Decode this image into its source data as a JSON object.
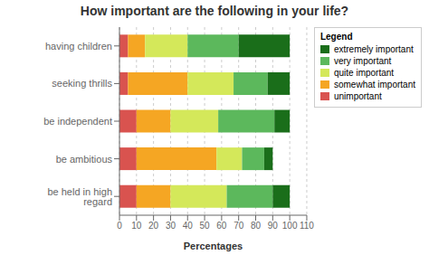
{
  "chart_data": {
    "type": "bar",
    "orientation": "horizontal",
    "stacked": true,
    "title": "How important are the following in your life?",
    "xlabel": "Percentages",
    "categories": [
      "having children",
      "seeking thrills",
      "be independent",
      "be ambitious",
      "be held in high regard"
    ],
    "series": [
      {
        "name": "extremely important",
        "color": "#1a6e1a",
        "values": [
          30,
          13,
          9,
          5,
          10
        ]
      },
      {
        "name": "very important",
        "color": "#5cb85c",
        "values": [
          30,
          20,
          33,
          13,
          27
        ]
      },
      {
        "name": "quite important",
        "color": "#d4e85a",
        "values": [
          25,
          27,
          28,
          15,
          33
        ]
      },
      {
        "name": "somewhat important",
        "color": "#f5a623",
        "values": [
          10,
          35,
          20,
          47,
          20
        ]
      },
      {
        "name": "unimportant",
        "color": "#d9534f",
        "values": [
          5,
          5,
          10,
          10,
          10
        ]
      }
    ],
    "xlim": [
      0,
      110
    ],
    "xticks": [
      0,
      10,
      20,
      30,
      40,
      50,
      60,
      70,
      80,
      90,
      100,
      110
    ],
    "grid": true,
    "legend": "right",
    "legend_title": "Legend"
  }
}
